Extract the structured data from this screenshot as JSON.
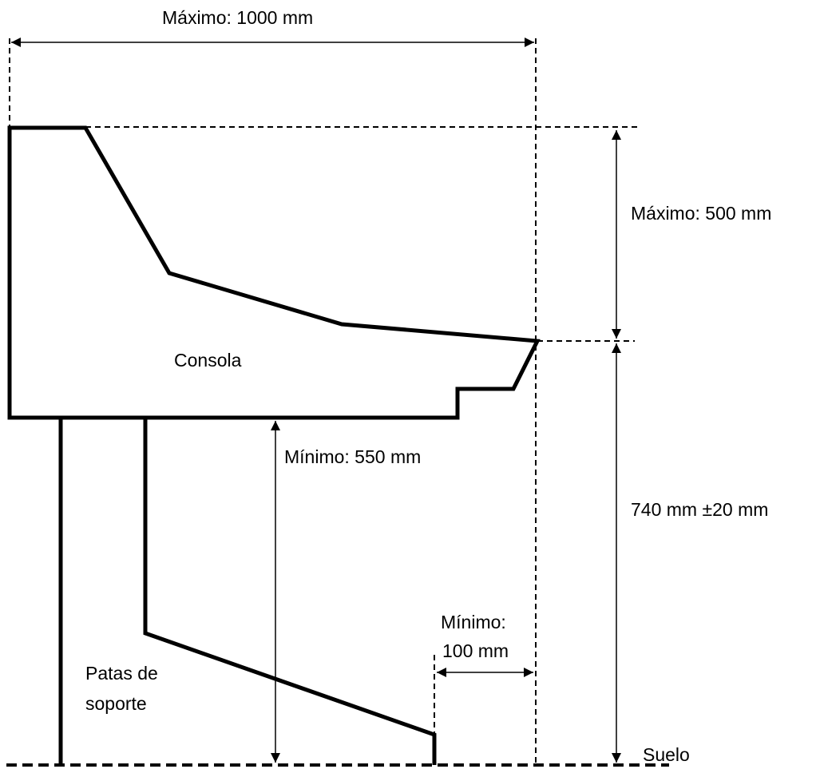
{
  "labels": {
    "max_width": "Máximo: 1000 mm",
    "max_height": "Máximo: 500 mm",
    "console": "Consola",
    "min_legroom": "Mínimo: 550 mm",
    "desk_height": "740 mm ±20 mm",
    "min_offset_line1": "Mínimo:",
    "min_offset_line2": "100 mm",
    "legs_line1": "Patas de",
    "legs_line2": "soporte",
    "floor": "Suelo"
  },
  "colors": {
    "stroke": "#000000",
    "background": "#ffffff"
  }
}
